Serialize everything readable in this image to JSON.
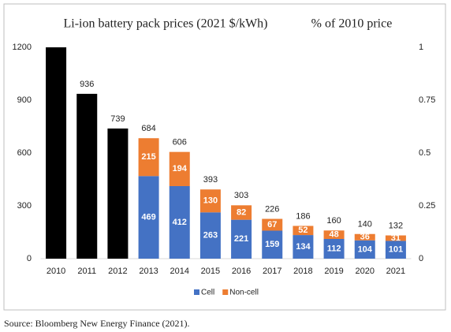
{
  "chart_data": {
    "type": "bar",
    "stacked": true,
    "title": "Li-ion battery pack prices (2021 $/kWh)",
    "y2_title": "% of 2010 price",
    "source": "Source: Bloomberg New Energy Finance (2021).",
    "categories": [
      "2010",
      "2011",
      "2012",
      "2013",
      "2014",
      "2015",
      "2016",
      "2017",
      "2018",
      "2019",
      "2020",
      "2021"
    ],
    "pack_color": "#000000",
    "pack_values": [
      1200,
      936,
      739,
      null,
      null,
      null,
      null,
      null,
      null,
      null,
      null,
      null
    ],
    "pack_value_labels": [
      null,
      "936",
      "739",
      null,
      null,
      null,
      null,
      null,
      null,
      null,
      null,
      null
    ],
    "series": [
      {
        "name": "Cell",
        "color": "#4472c4",
        "values": [
          null,
          null,
          null,
          469,
          412,
          263,
          221,
          159,
          134,
          112,
          104,
          101
        ]
      },
      {
        "name": "Non-cell",
        "color": "#ed7d31",
        "values": [
          null,
          null,
          null,
          215,
          194,
          130,
          82,
          67,
          52,
          48,
          36,
          31
        ]
      }
    ],
    "totals": [
      null,
      null,
      null,
      684,
      606,
      393,
      303,
      226,
      186,
      160,
      140,
      132
    ],
    "ylim": [
      0,
      1200
    ],
    "yticks": [
      0,
      300,
      600,
      900,
      1200
    ],
    "y2lim": [
      0,
      1
    ],
    "y2ticks": [
      0,
      0.25,
      0.5,
      0.75,
      1
    ],
    "legend": "bottom"
  }
}
